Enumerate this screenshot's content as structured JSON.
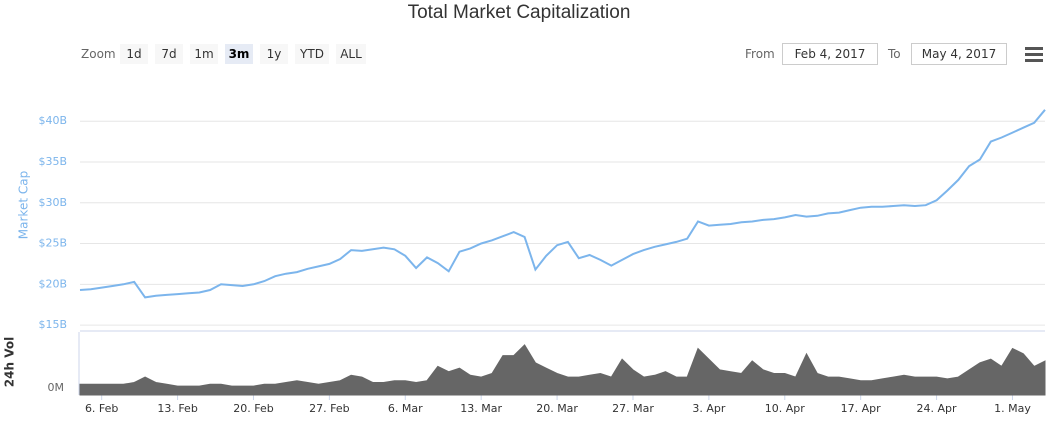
{
  "chart_data": {
    "type": "line",
    "title": "Total Market Capitalization",
    "range_selector": {
      "zoom_label": "Zoom",
      "buttons": [
        "1d",
        "7d",
        "1m",
        "3m",
        "1y",
        "YTD",
        "ALL"
      ],
      "selected": "3m",
      "from_label": "From",
      "from": "Feb 4, 2017",
      "to_label": "To",
      "to": "May 4, 2017"
    },
    "x": [
      "4. Feb",
      "5. Feb",
      "6. Feb",
      "7. Feb",
      "8. Feb",
      "9. Feb",
      "10. Feb",
      "11. Feb",
      "12. Feb",
      "13. Feb",
      "14. Feb",
      "15. Feb",
      "16. Feb",
      "17. Feb",
      "18. Feb",
      "19. Feb",
      "20. Feb",
      "21. Feb",
      "22. Feb",
      "23. Feb",
      "24. Feb",
      "25. Feb",
      "26. Feb",
      "27. Feb",
      "28. Feb",
      "1. Mar",
      "2. Mar",
      "3. Mar",
      "4. Mar",
      "5. Mar",
      "6. Mar",
      "7. Mar",
      "8. Mar",
      "9. Mar",
      "10. Mar",
      "11. Mar",
      "12. Mar",
      "13. Mar",
      "14. Mar",
      "15. Mar",
      "16. Mar",
      "17. Mar",
      "18. Mar",
      "19. Mar",
      "20. Mar",
      "21. Mar",
      "22. Mar",
      "23. Mar",
      "24. Mar",
      "25. Mar",
      "26. Mar",
      "27. Mar",
      "28. Mar",
      "29. Mar",
      "30. Mar",
      "31. Mar",
      "1. Apr",
      "2. Apr",
      "3. Apr",
      "4. Apr",
      "5. Apr",
      "6. Apr",
      "7. Apr",
      "8. Apr",
      "9. Apr",
      "10. Apr",
      "11. Apr",
      "12. Apr",
      "13. Apr",
      "14. Apr",
      "15. Apr",
      "16. Apr",
      "17. Apr",
      "18. Apr",
      "19. Apr",
      "20. Apr",
      "21. Apr",
      "22. Apr",
      "23. Apr",
      "24. Apr",
      "25. Apr",
      "26. Apr",
      "27. Apr",
      "28. Apr",
      "29. Apr",
      "30. Apr",
      "1. May",
      "2. May",
      "3. May",
      "4. May"
    ],
    "xticks": [
      "6. Feb",
      "13. Feb",
      "20. Feb",
      "27. Feb",
      "6. Mar",
      "13. Mar",
      "20. Mar",
      "27. Mar",
      "3. Apr",
      "10. Apr",
      "17. Apr",
      "24. Apr",
      "1. May"
    ],
    "series": [
      {
        "name": "Market Cap",
        "color": "#7cb5ec",
        "values": [
          19.3,
          19.4,
          19.6,
          19.8,
          20.0,
          20.3,
          18.4,
          18.6,
          18.7,
          18.8,
          18.9,
          19.0,
          19.3,
          20.0,
          19.9,
          19.8,
          20.0,
          20.4,
          21.0,
          21.3,
          21.5,
          21.9,
          22.2,
          22.5,
          23.1,
          24.2,
          24.1,
          24.3,
          24.5,
          24.3,
          23.5,
          22.0,
          23.3,
          22.6,
          21.6,
          24.0,
          24.4,
          25.0,
          25.4,
          25.9,
          26.4,
          25.8,
          21.8,
          23.5,
          24.8,
          25.2,
          23.2,
          23.6,
          23.0,
          22.3,
          23.0,
          23.7,
          24.2,
          24.6,
          24.9,
          25.2,
          25.6,
          27.7,
          27.2,
          27.3,
          27.4,
          27.6,
          27.7,
          27.9,
          28.0,
          28.2,
          28.5,
          28.3,
          28.4,
          28.7,
          28.8,
          29.1,
          29.4,
          29.5,
          29.5,
          29.6,
          29.7,
          29.6,
          29.7,
          30.3,
          31.5,
          32.8,
          34.5,
          35.3,
          37.5,
          38.0,
          38.6,
          39.2,
          39.8,
          41.4
        ]
      },
      {
        "name": "24h Vol",
        "type": "area",
        "axis": "y2",
        "color": "#666666",
        "values": [
          0.1,
          0.1,
          0.1,
          0.1,
          0.1,
          0.15,
          0.3,
          0.15,
          0.1,
          0.05,
          0.05,
          0.05,
          0.1,
          0.1,
          0.05,
          0.05,
          0.05,
          0.1,
          0.1,
          0.15,
          0.2,
          0.15,
          0.1,
          0.15,
          0.2,
          0.35,
          0.3,
          0.15,
          0.15,
          0.2,
          0.2,
          0.15,
          0.2,
          0.6,
          0.45,
          0.55,
          0.35,
          0.3,
          0.4,
          0.9,
          0.9,
          1.2,
          0.7,
          0.55,
          0.4,
          0.3,
          0.3,
          0.35,
          0.4,
          0.3,
          0.8,
          0.5,
          0.3,
          0.35,
          0.45,
          0.3,
          0.3,
          1.1,
          0.8,
          0.5,
          0.45,
          0.4,
          0.75,
          0.5,
          0.4,
          0.4,
          0.3,
          0.95,
          0.4,
          0.3,
          0.3,
          0.25,
          0.2,
          0.2,
          0.25,
          0.3,
          0.35,
          0.3,
          0.3,
          0.3,
          0.25,
          0.3,
          0.5,
          0.7,
          0.8,
          0.6,
          1.1,
          0.95,
          0.6,
          0.75
        ]
      }
    ],
    "ylim": [
      14.4,
      42.6
    ],
    "yticks": [
      {
        "value": 15,
        "label": "$15B"
      },
      {
        "value": 20,
        "label": "$20B"
      },
      {
        "value": 25,
        "label": "$25B"
      },
      {
        "value": 30,
        "label": "$30B"
      },
      {
        "value": 35,
        "label": "$35B"
      },
      {
        "value": 40,
        "label": "$40B"
      }
    ],
    "y2lim": [
      -0.2,
      1.56
    ],
    "y2ticks": [
      {
        "value": 0,
        "label": "0M"
      }
    ],
    "grid": true
  }
}
